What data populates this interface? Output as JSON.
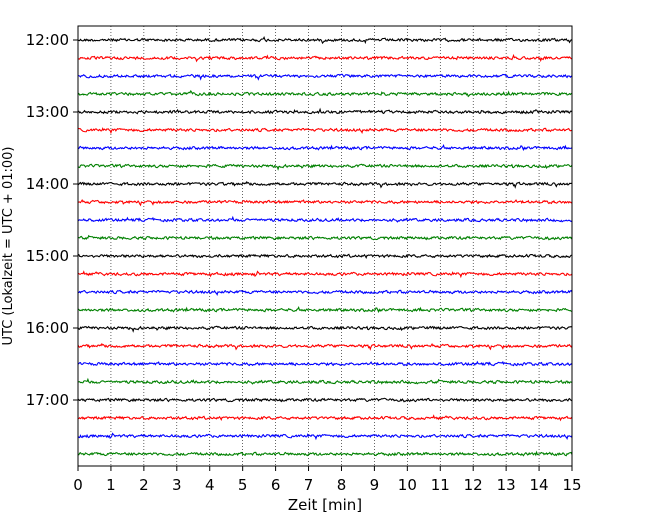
{
  "chart_data": {
    "type": "line",
    "title": "",
    "xlabel": "Zeit  [min]",
    "ylabel": "UTC (Lokalzeit = UTC + 01:00)",
    "xlim": [
      0,
      15
    ],
    "xticks": [
      0,
      1,
      2,
      3,
      4,
      5,
      6,
      7,
      8,
      9,
      10,
      11,
      12,
      13,
      14,
      15
    ],
    "x_gridlines": "dotted vertical at every minute",
    "trace_interval_min": 15,
    "trace_count": 24,
    "first_trace": "12:00",
    "last_trace": "17:45",
    "hour_labels": [
      "12:00",
      "13:00",
      "14:00",
      "15:00",
      "16:00",
      "17:00"
    ],
    "trace_colors_cycle": [
      "#000000",
      "#ff0000",
      "#0000ff",
      "#008000"
    ],
    "legend": "none"
  }
}
